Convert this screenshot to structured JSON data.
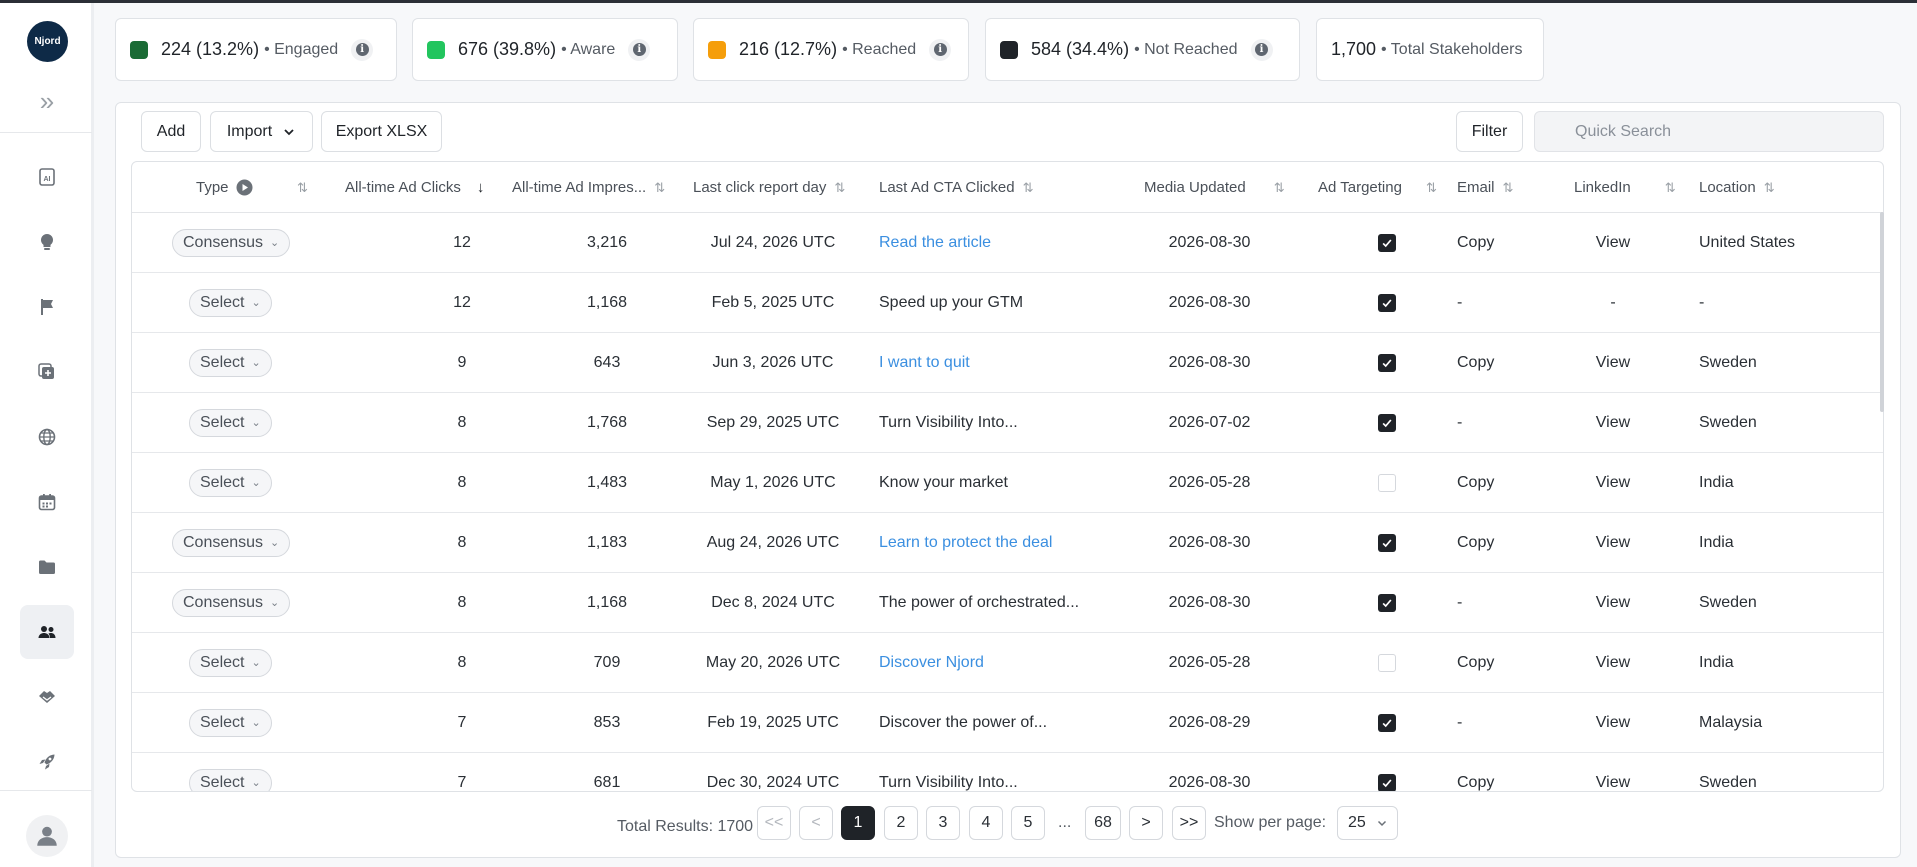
{
  "sidebar": {
    "logo_text": "Njord",
    "icons": [
      "ai-document-icon",
      "lightbulb-icon",
      "flag-icon",
      "add-copy-icon",
      "globe-icon",
      "calendar-icon",
      "folder-icon",
      "stakeholders-icon",
      "handshake-icon",
      "rocket-icon"
    ],
    "active": "stakeholders-icon"
  },
  "stats": [
    {
      "value": "224 (13.2%)",
      "label": "• Engaged",
      "color": "#1a6b35",
      "has_info": true
    },
    {
      "value": "676 (39.8%)",
      "label": "• Aware",
      "color": "#22c55e",
      "has_info": true
    },
    {
      "value": "216 (12.7%)",
      "label": "• Reached",
      "color": "#f59e0b",
      "has_info": true
    },
    {
      "value": "584 (34.4%)",
      "label": "• Not Reached",
      "color": "#1f2328",
      "has_info": true
    },
    {
      "value": "1,700",
      "label": "• Total Stakeholders",
      "color": "",
      "has_info": false
    }
  ],
  "toolbar": {
    "add_label": "Add",
    "import_label": "Import",
    "export_label": "Export XLSX",
    "filter_label": "Filter",
    "search_placeholder": "Quick Search"
  },
  "table": {
    "columns": [
      "Type",
      "All-time Ad Clicks",
      "All-time Ad Impres...",
      "Last click report day",
      "Last Ad CTA Clicked",
      "Media Updated",
      "Ad Targeting",
      "Email",
      "LinkedIn",
      "Location"
    ],
    "rows": [
      {
        "type": "Consensus",
        "clicks": "12",
        "impressions": "3,216",
        "last_click": "Jul 24, 2026 UTC",
        "cta": "Read the article",
        "cta_link": true,
        "media": "2026-08-30",
        "targeting": true,
        "email": "Copy",
        "linkedin": "View",
        "location": "United States"
      },
      {
        "type": "Select",
        "clicks": "12",
        "impressions": "1,168",
        "last_click": "Feb 5, 2025 UTC",
        "cta": "Speed up your GTM",
        "cta_link": false,
        "media": "2026-08-30",
        "targeting": true,
        "email": "-",
        "linkedin": "-",
        "location": "-"
      },
      {
        "type": "Select",
        "clicks": "9",
        "impressions": "643",
        "last_click": "Jun 3, 2026 UTC",
        "cta": "I want to quit",
        "cta_link": true,
        "media": "2026-08-30",
        "targeting": true,
        "email": "Copy",
        "linkedin": "View",
        "location": "Sweden"
      },
      {
        "type": "Select",
        "clicks": "8",
        "impressions": "1,768",
        "last_click": "Sep 29, 2025 UTC",
        "cta": "Turn Visibility Into...",
        "cta_link": false,
        "media": "2026-07-02",
        "targeting": true,
        "email": "-",
        "linkedin": "View",
        "location": "Sweden"
      },
      {
        "type": "Select",
        "clicks": "8",
        "impressions": "1,483",
        "last_click": "May 1, 2026 UTC",
        "cta": "Know your market",
        "cta_link": false,
        "media": "2026-05-28",
        "targeting": false,
        "email": "Copy",
        "linkedin": "View",
        "location": "India"
      },
      {
        "type": "Consensus",
        "clicks": "8",
        "impressions": "1,183",
        "last_click": "Aug 24, 2026 UTC",
        "cta": "Learn to protect the deal",
        "cta_link": true,
        "media": "2026-08-30",
        "targeting": true,
        "email": "Copy",
        "linkedin": "View",
        "location": "India"
      },
      {
        "type": "Consensus",
        "clicks": "8",
        "impressions": "1,168",
        "last_click": "Dec 8, 2024 UTC",
        "cta": "The power of orchestrated...",
        "cta_link": false,
        "media": "2026-08-30",
        "targeting": true,
        "email": "-",
        "linkedin": "View",
        "location": "Sweden"
      },
      {
        "type": "Select",
        "clicks": "8",
        "impressions": "709",
        "last_click": "May 20, 2026 UTC",
        "cta": "Discover Njord",
        "cta_link": true,
        "media": "2026-05-28",
        "targeting": false,
        "email": "Copy",
        "linkedin": "View",
        "location": "India"
      },
      {
        "type": "Select",
        "clicks": "7",
        "impressions": "853",
        "last_click": "Feb 19, 2025 UTC",
        "cta": "Discover the power of...",
        "cta_link": false,
        "media": "2026-08-29",
        "targeting": true,
        "email": "-",
        "linkedin": "View",
        "location": "Malaysia"
      },
      {
        "type": "Select",
        "clicks": "7",
        "impressions": "681",
        "last_click": "Dec 30, 2024 UTC",
        "cta": "Turn Visibility Into...",
        "cta_link": false,
        "media": "2026-08-30",
        "targeting": true,
        "email": "Copy",
        "linkedin": "View",
        "location": "Sweden"
      }
    ]
  },
  "pagination": {
    "total_label": "Total Results: 1700",
    "first": "<<",
    "prev": "<",
    "pages": [
      "1",
      "2",
      "3",
      "4",
      "5"
    ],
    "ellipsis": "...",
    "last_page": "68",
    "next": ">",
    "last": ">>",
    "current_page": "1",
    "per_page_label": "Show per page:",
    "per_page_value": "25"
  }
}
